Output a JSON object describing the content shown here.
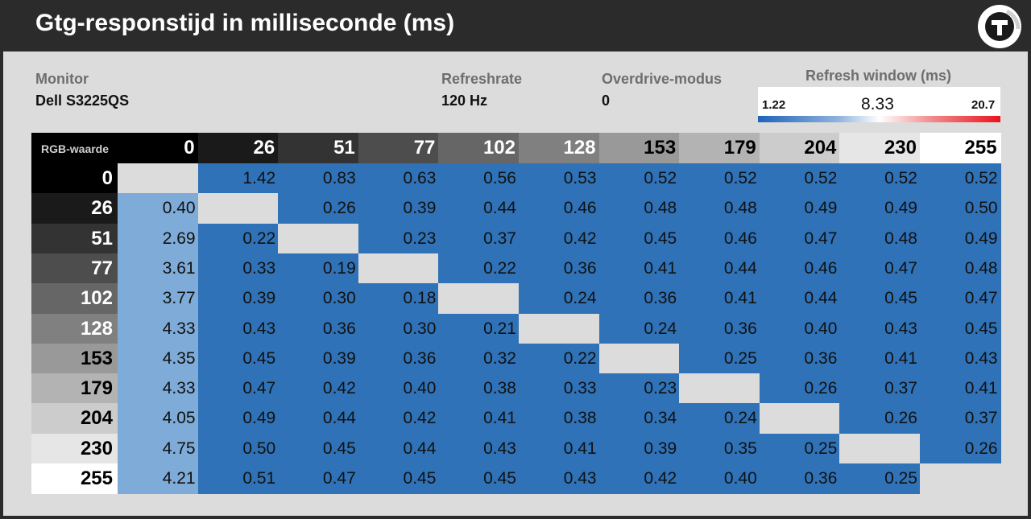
{
  "title": "Gtg-responstijd in milliseconde (ms)",
  "monitor": {
    "label": "Monitor",
    "value": "Dell S3225QS"
  },
  "refreshrate": {
    "label": "Refreshrate",
    "value": "120 Hz"
  },
  "overdrive": {
    "label": "Overdrive-modus",
    "value": "0"
  },
  "legend": {
    "title": "Refresh window (ms)",
    "min": "1.22",
    "mid": "8.33",
    "max": "20.7"
  },
  "colors": {
    "cell_blue": "#2f72b7",
    "cell_light": "#7eabd7",
    "diagonal": "#dcdcdc",
    "header_bg": "#2b2b2b",
    "panel_bg": "#dcdcdc"
  },
  "chart_data": {
    "type": "heatmap",
    "title": "Gtg-responstijd in milliseconde (ms)",
    "corner_label": "RGB-waarde",
    "columns": [
      "0",
      "26",
      "51",
      "77",
      "102",
      "128",
      "153",
      "179",
      "204",
      "230",
      "255"
    ],
    "rows": [
      "0",
      "26",
      "51",
      "77",
      "102",
      "128",
      "153",
      "179",
      "204",
      "230",
      "255"
    ],
    "values": [
      [
        null,
        "1.42",
        "0.83",
        "0.63",
        "0.56",
        "0.53",
        "0.52",
        "0.52",
        "0.52",
        "0.52",
        "0.52"
      ],
      [
        "0.40",
        null,
        "0.26",
        "0.39",
        "0.44",
        "0.46",
        "0.48",
        "0.48",
        "0.49",
        "0.49",
        "0.50"
      ],
      [
        "2.69",
        "0.22",
        null,
        "0.23",
        "0.37",
        "0.42",
        "0.45",
        "0.46",
        "0.47",
        "0.48",
        "0.49"
      ],
      [
        "3.61",
        "0.33",
        "0.19",
        null,
        "0.22",
        "0.36",
        "0.41",
        "0.44",
        "0.46",
        "0.47",
        "0.48"
      ],
      [
        "3.77",
        "0.39",
        "0.30",
        "0.18",
        null,
        "0.24",
        "0.36",
        "0.41",
        "0.44",
        "0.45",
        "0.47"
      ],
      [
        "4.33",
        "0.43",
        "0.36",
        "0.30",
        "0.21",
        null,
        "0.24",
        "0.36",
        "0.40",
        "0.43",
        "0.45"
      ],
      [
        "4.35",
        "0.45",
        "0.39",
        "0.36",
        "0.32",
        "0.22",
        null,
        "0.25",
        "0.36",
        "0.41",
        "0.43"
      ],
      [
        "4.33",
        "0.47",
        "0.42",
        "0.40",
        "0.38",
        "0.33",
        "0.23",
        null,
        "0.26",
        "0.37",
        "0.41"
      ],
      [
        "4.05",
        "0.49",
        "0.44",
        "0.42",
        "0.41",
        "0.38",
        "0.34",
        "0.24",
        null,
        "0.26",
        "0.37"
      ],
      [
        "4.75",
        "0.50",
        "0.45",
        "0.44",
        "0.43",
        "0.41",
        "0.39",
        "0.35",
        "0.25",
        null,
        "0.26"
      ],
      [
        "4.21",
        "0.51",
        "0.47",
        "0.45",
        "0.45",
        "0.43",
        "0.42",
        "0.40",
        "0.36",
        "0.25",
        null
      ]
    ],
    "scale": {
      "min": 1.22,
      "mid": 8.33,
      "max": 20.7
    }
  }
}
